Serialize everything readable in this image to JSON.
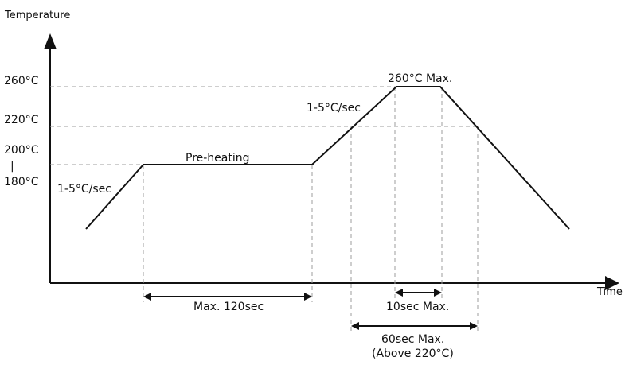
{
  "axes": {
    "y_title": "Temperature",
    "x_title": "Time"
  },
  "temperature_levels": {
    "t260": "260°C",
    "t220": "220°C",
    "t200": "200°C",
    "t180": "180°C",
    "range_separator": "|"
  },
  "annotations": {
    "ramp_preheat": "1-5°C/sec",
    "preheating": "Pre-heating",
    "ramp_reflow": "1-5°C/sec",
    "peak": "260°C Max."
  },
  "durations": {
    "preheat": "Max. 120sec",
    "peak_hold": "10sec Max.",
    "above_220_line1": "60sec Max.",
    "above_220_line2": "(Above 220°C)"
  },
  "colors": {
    "profile_line": "#111111",
    "guide_lines": "#9e9e9e"
  }
}
